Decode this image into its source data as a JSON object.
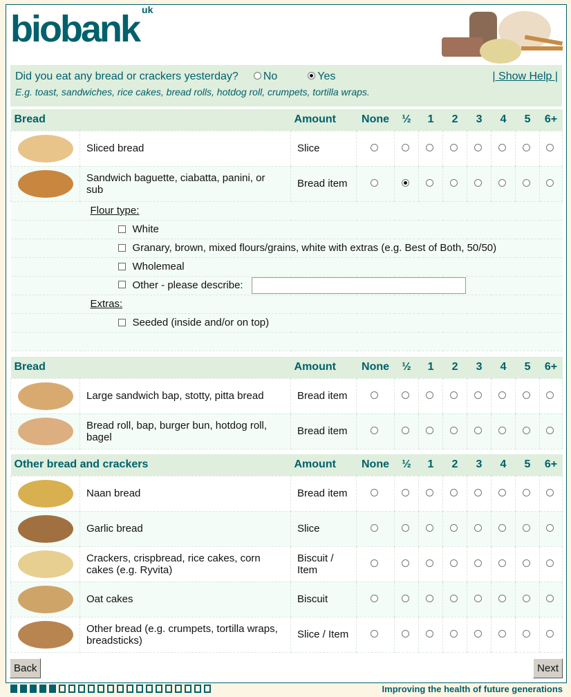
{
  "logo": {
    "text": "biobank",
    "suffix": "uk"
  },
  "question": {
    "text": "Did you eat any bread or crackers yesterday?",
    "options": [
      "No",
      "Yes"
    ],
    "selected": "Yes",
    "examples": "E.g. toast, sandwiches, rice cakes, bread rolls, hotdog roll, crumpets, tortilla wraps.",
    "help": "| Show Help |"
  },
  "columns": [
    "None",
    "½",
    "1",
    "2",
    "3",
    "4",
    "5",
    "6+"
  ],
  "sections": [
    {
      "title": "Bread",
      "amount_header": "Amount",
      "rows": [
        {
          "name": "Sliced bread",
          "amount": "Slice",
          "color": "#e8c48a",
          "selected": null
        },
        {
          "name": "Sandwich baguette, ciabatta, panini, or sub",
          "amount": "Bread item",
          "color": "#c9863f",
          "selected": "½"
        }
      ]
    },
    {
      "title": "Bread",
      "amount_header": "Amount",
      "rows": [
        {
          "name": "Large sandwich bap, stotty, pitta bread",
          "amount": "Bread item",
          "color": "#d9aa70",
          "selected": null
        },
        {
          "name": "Bread roll, bap, burger bun, hotdog roll, bagel",
          "amount": "Bread item",
          "color": "#dcae80",
          "selected": null
        }
      ]
    },
    {
      "title": "Other bread and crackers",
      "amount_header": "Amount",
      "rows": [
        {
          "name": "Naan bread",
          "amount": "Bread item",
          "color": "#d8b050",
          "selected": null
        },
        {
          "name": "Garlic bread",
          "amount": "Slice",
          "color": "#a07040",
          "selected": null
        },
        {
          "name": "Crackers, crispbread, rice cakes, corn cakes (e.g. Ryvita)",
          "amount": "Biscuit  / Item",
          "color": "#e6cf90",
          "selected": null
        },
        {
          "name": "Oat cakes",
          "amount": "Biscuit",
          "color": "#cfa468",
          "selected": null
        },
        {
          "name": "Other bread (e.g. crumpets, tortilla wraps, breadsticks)",
          "amount": "Slice / Item",
          "color": "#b88550",
          "selected": null
        }
      ]
    }
  ],
  "followup": {
    "flour_label": "Flour type:",
    "flour_options": [
      "White",
      "Granary, brown, mixed flours/grains, white with extras (e.g. Best of Both, 50/50)",
      "Wholemeal"
    ],
    "other_label": "Other - please describe:",
    "other_value": "",
    "extras_label": "Extras:",
    "extras_options": [
      "Seeded (inside and/or on top)"
    ]
  },
  "nav": {
    "back": "Back",
    "next": "Next"
  },
  "progress": {
    "completed": 5,
    "total": 21
  },
  "tagline": "Improving the health of future generations",
  "colors": {
    "brand": "#00606b",
    "header_bg": "#dfeedd",
    "page_bg": "#fdf5e3"
  }
}
